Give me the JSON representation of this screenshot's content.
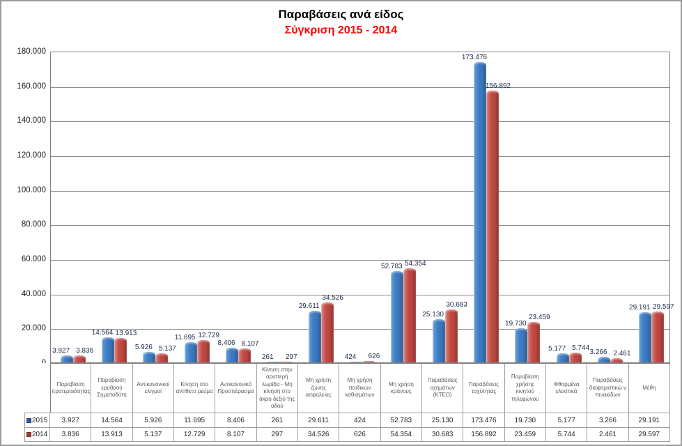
{
  "title": "Παραβάσεις ανά είδος",
  "subtitle": "Σύγκριση 2015 - 2014",
  "subtitle_color": "#FF0000",
  "chart_data": {
    "type": "bar",
    "title": "Παραβάσεις ανά είδος",
    "subtitle": "Σύγκριση 2015 - 2014",
    "categories": [
      "Παραβίαση προτεραιότητας",
      "Παραβίαση ερυθρού Σηματοδότη",
      "Αντικανονικοί ελιγμοί",
      "Κίνηση στο αντίθετο ρεύμα",
      "Αντικανονικό Προσπέρασμα",
      "Κίνηση στην αριστερή λωρίδα - Μη κίνηση στο άκρο δεξιό της οδού",
      "Μη χρήση ζώνης ασφαλείας",
      "Μη χρήση παιδικών καθισμάτων",
      "Μη χρήση κράνους",
      "Παραβάσεις οχημάτων (ΚΤΕΟ)",
      "Παραβάσεις ταχύτητας",
      "Παραβίαση χρήσης κινητού τηλεφώνου",
      "Φθαρμένα ελαστικά",
      "Παραβάσεις διαφημιστικώ ν πινακίδων",
      "Μέθη"
    ],
    "series": [
      {
        "name": "2015",
        "color": "#3E7CC4",
        "values": [
          3927,
          14564,
          5926,
          11695,
          8406,
          261,
          29611,
          424,
          52783,
          25130,
          173476,
          19730,
          5177,
          3266,
          29191
        ],
        "labels": [
          "3.927",
          "14.564",
          "5.926",
          "11.695",
          "8.406",
          "261",
          "29.611",
          "424",
          "52.783",
          "25.130",
          "173.476",
          "19.730",
          "5.177",
          "3.266",
          "29.191"
        ]
      },
      {
        "name": "2014",
        "color": "#C34B45",
        "values": [
          3836,
          13913,
          5137,
          12729,
          8107,
          297,
          34526,
          626,
          54354,
          30683,
          156892,
          23459,
          5744,
          2461,
          29597
        ],
        "labels": [
          "3.836",
          "13.913",
          "5.137",
          "12.729",
          "8.107",
          "297",
          "34.526",
          "626",
          "54.354",
          "30.683",
          "156.892",
          "23.459",
          "5.744",
          "2.461",
          "29.597"
        ]
      }
    ],
    "ylim": [
      0,
      180000
    ],
    "ytick_step": 20000,
    "ytick_labels": [
      "0",
      "20.000",
      "40.000",
      "60.000",
      "80.000",
      "100.000",
      "120.000",
      "140.000",
      "160.000",
      "180.000"
    ],
    "grid": true,
    "legend_position": "table-left",
    "data_labels": true
  }
}
